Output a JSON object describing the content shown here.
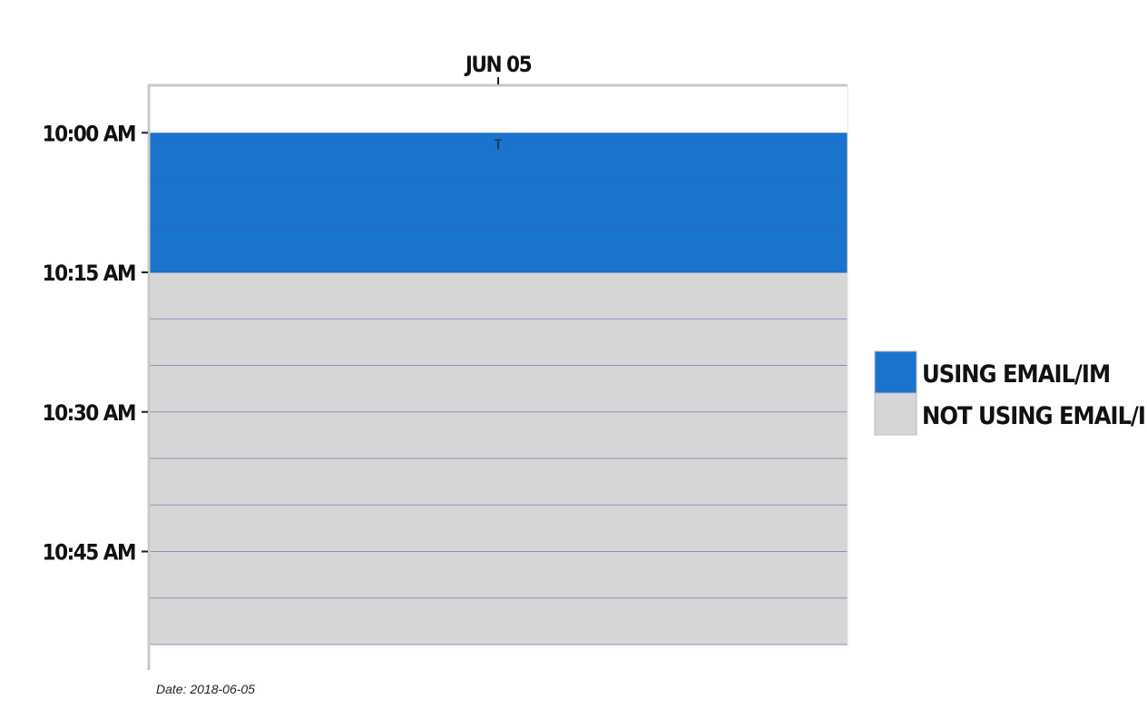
{
  "chart_data": {
    "type": "heatmap",
    "title": "",
    "xlabel": "",
    "ylabel": "",
    "x_categories": [
      "JUN 05"
    ],
    "y_start": "09:55 AM",
    "y_end": "10:55 AM",
    "interval_minutes": 5,
    "y_ticks": [
      "10:00 AM",
      "10:15 AM",
      "10:30 AM",
      "10:45 AM"
    ],
    "cells": [
      {
        "start": "09:55 AM",
        "end": "10:00 AM",
        "state": "blank"
      },
      {
        "start": "10:00 AM",
        "end": "10:05 AM",
        "state": "using"
      },
      {
        "start": "10:05 AM",
        "end": "10:10 AM",
        "state": "using"
      },
      {
        "start": "10:10 AM",
        "end": "10:15 AM",
        "state": "using"
      },
      {
        "start": "10:15 AM",
        "end": "10:20 AM",
        "state": "not_using"
      },
      {
        "start": "10:20 AM",
        "end": "10:25 AM",
        "state": "not_using"
      },
      {
        "start": "10:25 AM",
        "end": "10:30 AM",
        "state": "not_using"
      },
      {
        "start": "10:30 AM",
        "end": "10:35 AM",
        "state": "not_using"
      },
      {
        "start": "10:35 AM",
        "end": "10:40 AM",
        "state": "not_using"
      },
      {
        "start": "10:40 AM",
        "end": "10:45 AM",
        "state": "not_using"
      },
      {
        "start": "10:45 AM",
        "end": "10:50 AM",
        "state": "not_using"
      },
      {
        "start": "10:50 AM",
        "end": "10:55 AM",
        "state": "not_using"
      }
    ],
    "annotations": [
      {
        "text": "T",
        "at": "10:00 AM",
        "column": "JUN 05"
      }
    ],
    "legend": [
      {
        "key": "using",
        "label": "USING EMAIL/IM",
        "color": "#1a73cc"
      },
      {
        "key": "not_using",
        "label": "NOT USING EMAIL/IM",
        "color": "#d6d6d6"
      }
    ],
    "legend_position": "right",
    "colors": {
      "divider": "#8f8fb8",
      "axis": "#c8c8c8",
      "tick": "#222222"
    }
  },
  "footer": {
    "date_note": "Date: 2018-06-05"
  }
}
